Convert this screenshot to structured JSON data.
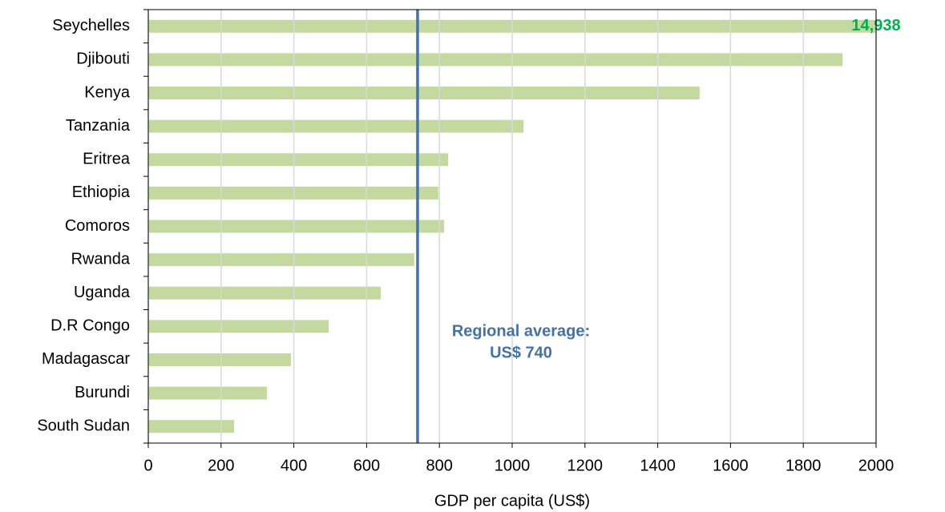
{
  "chart_data": {
    "type": "hbar",
    "xlabel": "GDP per capita (US$)",
    "categories": [
      "Seychelles",
      "Djibouti",
      "Kenya",
      "Tanzania",
      "Eritrea",
      "Ethiopia",
      "Comoros",
      "Rwanda",
      "Uganda",
      "D.R Congo",
      "Madagascar",
      "Burundi",
      "South Sudan"
    ],
    "values": [
      14938,
      1908,
      1515,
      1031,
      824,
      797,
      813,
      731,
      639,
      496,
      392,
      326,
      236
    ],
    "value_labels": [
      "14,938",
      null,
      null,
      null,
      null,
      null,
      null,
      null,
      null,
      null,
      null,
      null,
      null
    ],
    "color": "#c4d9a0",
    "value_label_color": "#00b050",
    "xlim": [
      0,
      2000
    ],
    "xticks": [
      0,
      200,
      400,
      600,
      800,
      1000,
      1200,
      1400,
      1600,
      1800,
      2000
    ],
    "grid": true,
    "reference_line": {
      "value": 740,
      "color": "#4472a8",
      "label": [
        "Regional average:",
        "US$ 740"
      ]
    }
  }
}
